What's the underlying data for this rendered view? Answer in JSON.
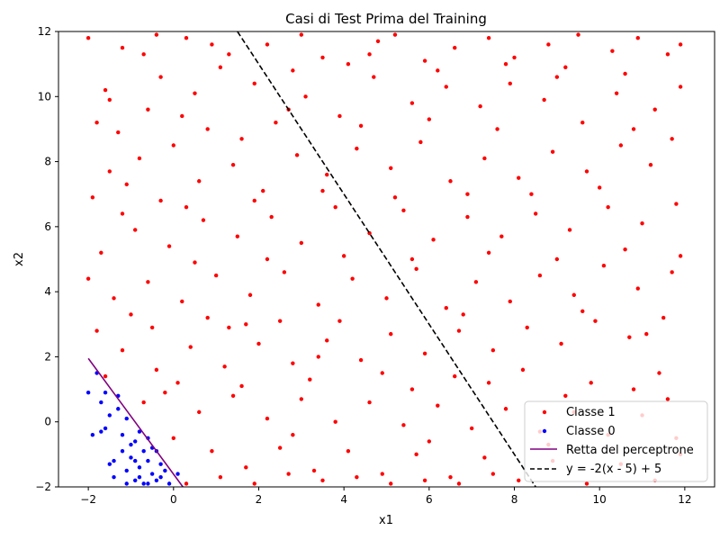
{
  "chart_data": {
    "type": "scatter",
    "title": "Casi di Test Prima del Training",
    "xlabel": "x1",
    "ylabel": "x2",
    "xlim": [
      -2.7,
      12.7
    ],
    "ylim": [
      -2,
      12
    ],
    "xticks": [
      -2,
      0,
      2,
      4,
      6,
      8,
      10,
      12
    ],
    "yticks": [
      -2,
      0,
      2,
      4,
      6,
      8,
      10,
      12
    ],
    "x_tick_labels": [
      "−2",
      "0",
      "2",
      "4",
      "6",
      "8",
      "10",
      "12"
    ],
    "y_tick_labels": [
      "−2",
      "0",
      "2",
      "4",
      "6",
      "8",
      "10",
      "12"
    ],
    "grid": false,
    "legend_position": "bottom-right",
    "series": [
      {
        "name": "Classe 1",
        "kind": "scatter",
        "color": "#ff0000",
        "points": [
          [
            -2.0,
            11.8
          ],
          [
            -1.6,
            10.2
          ],
          [
            -1.2,
            11.5
          ],
          [
            -0.7,
            11.3
          ],
          [
            -0.4,
            11.9
          ],
          [
            0.3,
            11.8
          ],
          [
            0.9,
            11.6
          ],
          [
            -1.8,
            9.2
          ],
          [
            -1.3,
            8.9
          ],
          [
            -0.6,
            9.6
          ],
          [
            0.5,
            10.1
          ],
          [
            1.1,
            10.9
          ],
          [
            1.9,
            10.4
          ],
          [
            2.2,
            11.6
          ],
          [
            3.0,
            11.9
          ],
          [
            3.5,
            11.2
          ],
          [
            4.1,
            11.0
          ],
          [
            4.8,
            11.7
          ],
          [
            5.2,
            11.9
          ],
          [
            5.9,
            11.1
          ],
          [
            6.6,
            11.5
          ],
          [
            7.4,
            11.8
          ],
          [
            8.0,
            11.2
          ],
          [
            8.8,
            11.6
          ],
          [
            9.5,
            11.9
          ],
          [
            10.3,
            11.4
          ],
          [
            10.9,
            11.8
          ],
          [
            11.6,
            11.3
          ],
          [
            11.9,
            10.3
          ],
          [
            11.3,
            9.6
          ],
          [
            10.4,
            10.1
          ],
          [
            9.6,
            9.2
          ],
          [
            8.7,
            9.9
          ],
          [
            7.9,
            10.4
          ],
          [
            7.2,
            9.7
          ],
          [
            6.4,
            10.3
          ],
          [
            5.6,
            9.8
          ],
          [
            4.7,
            10.6
          ],
          [
            3.9,
            9.4
          ],
          [
            3.1,
            10.0
          ],
          [
            2.4,
            9.2
          ],
          [
            1.6,
            8.7
          ],
          [
            0.8,
            9.0
          ],
          [
            0.0,
            8.5
          ],
          [
            -0.8,
            8.1
          ],
          [
            -1.5,
            7.7
          ],
          [
            -1.9,
            6.9
          ],
          [
            -1.2,
            6.4
          ],
          [
            -0.3,
            6.8
          ],
          [
            0.6,
            7.4
          ],
          [
            1.4,
            7.9
          ],
          [
            2.1,
            7.1
          ],
          [
            2.9,
            8.2
          ],
          [
            3.6,
            7.6
          ],
          [
            4.3,
            8.4
          ],
          [
            5.1,
            7.8
          ],
          [
            5.8,
            8.6
          ],
          [
            6.5,
            7.4
          ],
          [
            7.3,
            8.1
          ],
          [
            8.1,
            7.5
          ],
          [
            8.9,
            8.3
          ],
          [
            9.7,
            7.7
          ],
          [
            10.5,
            8.5
          ],
          [
            11.2,
            7.9
          ],
          [
            11.8,
            6.7
          ],
          [
            11.0,
            6.1
          ],
          [
            10.2,
            6.6
          ],
          [
            9.3,
            5.9
          ],
          [
            8.5,
            6.4
          ],
          [
            7.7,
            5.7
          ],
          [
            6.9,
            6.3
          ],
          [
            6.1,
            5.6
          ],
          [
            5.4,
            6.5
          ],
          [
            4.6,
            5.8
          ],
          [
            3.8,
            6.6
          ],
          [
            3.0,
            5.5
          ],
          [
            2.3,
            6.3
          ],
          [
            1.5,
            5.7
          ],
          [
            0.7,
            6.2
          ],
          [
            -0.1,
            5.4
          ],
          [
            -0.9,
            5.9
          ],
          [
            -1.7,
            5.2
          ],
          [
            -2.0,
            4.4
          ],
          [
            -1.4,
            3.8
          ],
          [
            -0.6,
            4.3
          ],
          [
            0.2,
            3.7
          ],
          [
            1.0,
            4.5
          ],
          [
            1.8,
            3.9
          ],
          [
            2.6,
            4.6
          ],
          [
            3.4,
            3.6
          ],
          [
            4.2,
            4.4
          ],
          [
            5.0,
            3.8
          ],
          [
            5.7,
            4.7
          ],
          [
            6.4,
            3.5
          ],
          [
            7.1,
            4.3
          ],
          [
            7.9,
            3.7
          ],
          [
            8.6,
            4.5
          ],
          [
            9.4,
            3.9
          ],
          [
            10.1,
            4.8
          ],
          [
            10.9,
            4.1
          ],
          [
            11.7,
            4.6
          ],
          [
            11.5,
            3.2
          ],
          [
            10.7,
            2.6
          ],
          [
            9.9,
            3.1
          ],
          [
            9.1,
            2.4
          ],
          [
            8.3,
            2.9
          ],
          [
            7.5,
            2.2
          ],
          [
            6.7,
            2.8
          ],
          [
            5.9,
            2.1
          ],
          [
            5.1,
            2.7
          ],
          [
            4.4,
            1.9
          ],
          [
            3.6,
            2.5
          ],
          [
            2.8,
            1.8
          ],
          [
            2.0,
            2.4
          ],
          [
            1.2,
            1.7
          ],
          [
            0.4,
            2.3
          ],
          [
            -0.4,
            1.6
          ],
          [
            -1.2,
            2.2
          ],
          [
            -1.8,
            2.8
          ],
          [
            -0.2,
            0.9
          ],
          [
            0.6,
            0.3
          ],
          [
            1.4,
            0.8
          ],
          [
            2.2,
            0.1
          ],
          [
            3.0,
            0.7
          ],
          [
            3.8,
            0.0
          ],
          [
            4.6,
            0.6
          ],
          [
            5.4,
            -0.1
          ],
          [
            6.2,
            0.5
          ],
          [
            7.0,
            -0.2
          ],
          [
            7.8,
            0.4
          ],
          [
            8.6,
            -0.3
          ],
          [
            9.4,
            0.3
          ],
          [
            10.2,
            -0.4
          ],
          [
            11.0,
            0.2
          ],
          [
            11.8,
            -0.5
          ],
          [
            0.9,
            -0.9
          ],
          [
            1.7,
            -1.4
          ],
          [
            2.5,
            -0.8
          ],
          [
            3.3,
            -1.5
          ],
          [
            4.1,
            -0.9
          ],
          [
            4.9,
            -1.6
          ],
          [
            5.7,
            -1.0
          ],
          [
            6.5,
            -1.7
          ],
          [
            7.3,
            -1.1
          ],
          [
            8.1,
            -1.8
          ],
          [
            8.9,
            -1.2
          ],
          [
            9.7,
            -1.9
          ],
          [
            10.5,
            -1.3
          ],
          [
            11.3,
            -1.8
          ],
          [
            11.9,
            -1.0
          ],
          [
            0.3,
            -1.9
          ],
          [
            1.1,
            -1.7
          ],
          [
            1.9,
            -1.9
          ],
          [
            2.7,
            -1.6
          ],
          [
            3.5,
            -1.8
          ],
          [
            4.3,
            -1.7
          ],
          [
            5.1,
            -1.9
          ],
          [
            5.9,
            -1.8
          ],
          [
            6.7,
            -1.9
          ],
          [
            7.5,
            -1.6
          ],
          [
            0.1,
            1.2
          ],
          [
            -0.7,
            0.6
          ],
          [
            1.3,
            2.9
          ],
          [
            2.5,
            3.1
          ],
          [
            3.2,
            1.3
          ],
          [
            4.9,
            1.5
          ],
          [
            6.6,
            1.4
          ],
          [
            8.2,
            1.6
          ],
          [
            9.8,
            1.2
          ],
          [
            11.4,
            1.5
          ],
          [
            -1.0,
            3.3
          ],
          [
            0.8,
            3.2
          ],
          [
            3.9,
            3.1
          ],
          [
            6.8,
            3.3
          ],
          [
            9.6,
            3.4
          ],
          [
            11.1,
            2.7
          ],
          [
            -1.5,
            9.9
          ],
          [
            0.2,
            9.4
          ],
          [
            2.7,
            9.6
          ],
          [
            4.4,
            9.1
          ],
          [
            6.0,
            9.3
          ],
          [
            7.6,
            9.0
          ],
          [
            9.0,
            10.6
          ],
          [
            10.8,
            9.0
          ],
          [
            11.7,
            8.7
          ],
          [
            10.0,
            7.2
          ],
          [
            8.4,
            7.0
          ],
          [
            6.9,
            7.0
          ],
          [
            5.2,
            6.9
          ],
          [
            3.5,
            7.1
          ],
          [
            1.9,
            6.8
          ],
          [
            0.3,
            6.6
          ],
          [
            -1.1,
            7.3
          ],
          [
            -0.3,
            10.6
          ],
          [
            1.3,
            11.3
          ],
          [
            2.8,
            10.8
          ],
          [
            4.6,
            11.3
          ],
          [
            6.2,
            10.8
          ],
          [
            7.8,
            11.0
          ],
          [
            9.2,
            10.9
          ],
          [
            10.6,
            10.7
          ],
          [
            11.9,
            11.6
          ],
          [
            0.5,
            4.9
          ],
          [
            2.2,
            5.0
          ],
          [
            4.0,
            5.1
          ],
          [
            5.6,
            5.0
          ],
          [
            7.4,
            5.2
          ],
          [
            9.0,
            5.0
          ],
          [
            10.6,
            5.3
          ],
          [
            11.9,
            5.1
          ],
          [
            -1.6,
            1.4
          ],
          [
            1.6,
            1.1
          ],
          [
            3.4,
            2.0
          ],
          [
            5.6,
            1.0
          ],
          [
            7.4,
            1.2
          ],
          [
            9.2,
            0.8
          ],
          [
            10.8,
            1.0
          ],
          [
            0.0,
            -0.5
          ],
          [
            2.8,
            -0.4
          ],
          [
            6.0,
            -0.6
          ],
          [
            8.8,
            -0.7
          ],
          [
            11.6,
            0.7
          ],
          [
            -0.5,
            2.9
          ],
          [
            1.7,
            3.0
          ]
        ]
      },
      {
        "name": "Classe 0",
        "kind": "scatter",
        "color": "#0000ff",
        "points": [
          [
            -2.0,
            0.9
          ],
          [
            -1.9,
            -0.4
          ],
          [
            -1.8,
            1.5
          ],
          [
            -1.7,
            0.6
          ],
          [
            -1.6,
            -0.2
          ],
          [
            -1.5,
            -1.3
          ],
          [
            -1.4,
            -1.7
          ],
          [
            -1.3,
            0.4
          ],
          [
            -1.3,
            0.8
          ],
          [
            -1.2,
            -0.9
          ],
          [
            -1.1,
            -1.5
          ],
          [
            -1.1,
            0.1
          ],
          [
            -1.0,
            -1.1
          ],
          [
            -0.9,
            -1.8
          ],
          [
            -0.9,
            -0.6
          ],
          [
            -0.8,
            -0.3
          ],
          [
            -0.8,
            -1.4
          ],
          [
            -0.7,
            -0.9
          ],
          [
            -0.7,
            -1.9
          ],
          [
            -0.6,
            -0.5
          ],
          [
            -0.6,
            -1.2
          ],
          [
            -0.5,
            -1.6
          ],
          [
            -0.4,
            -0.9
          ],
          [
            -0.4,
            -1.8
          ],
          [
            -0.3,
            -1.3
          ],
          [
            -0.2,
            -1.5
          ],
          [
            -0.1,
            -1.9
          ],
          [
            -1.5,
            0.2
          ],
          [
            -1.2,
            -0.4
          ],
          [
            -0.9,
            -1.2
          ],
          [
            -1.7,
            -0.3
          ],
          [
            -1.0,
            -0.7
          ],
          [
            -0.5,
            -0.8
          ],
          [
            -0.3,
            -1.7
          ],
          [
            -1.4,
            -1.2
          ],
          [
            -0.8,
            -1.7
          ],
          [
            -1.6,
            0.9
          ],
          [
            -1.1,
            -1.9
          ],
          [
            0.1,
            -1.6
          ],
          [
            -0.6,
            -1.9
          ]
        ]
      },
      {
        "name": "Retta del perceptrone",
        "kind": "line",
        "color": "#800080",
        "points": [
          [
            -2.0,
            1.95
          ],
          [
            0.22,
            -2.0
          ]
        ]
      },
      {
        "name": "y = -2(x - 5) + 5",
        "kind": "dashed-line",
        "color": "#000000",
        "points": [
          [
            1.5,
            12.0
          ],
          [
            8.5,
            -2.0
          ]
        ]
      }
    ]
  }
}
